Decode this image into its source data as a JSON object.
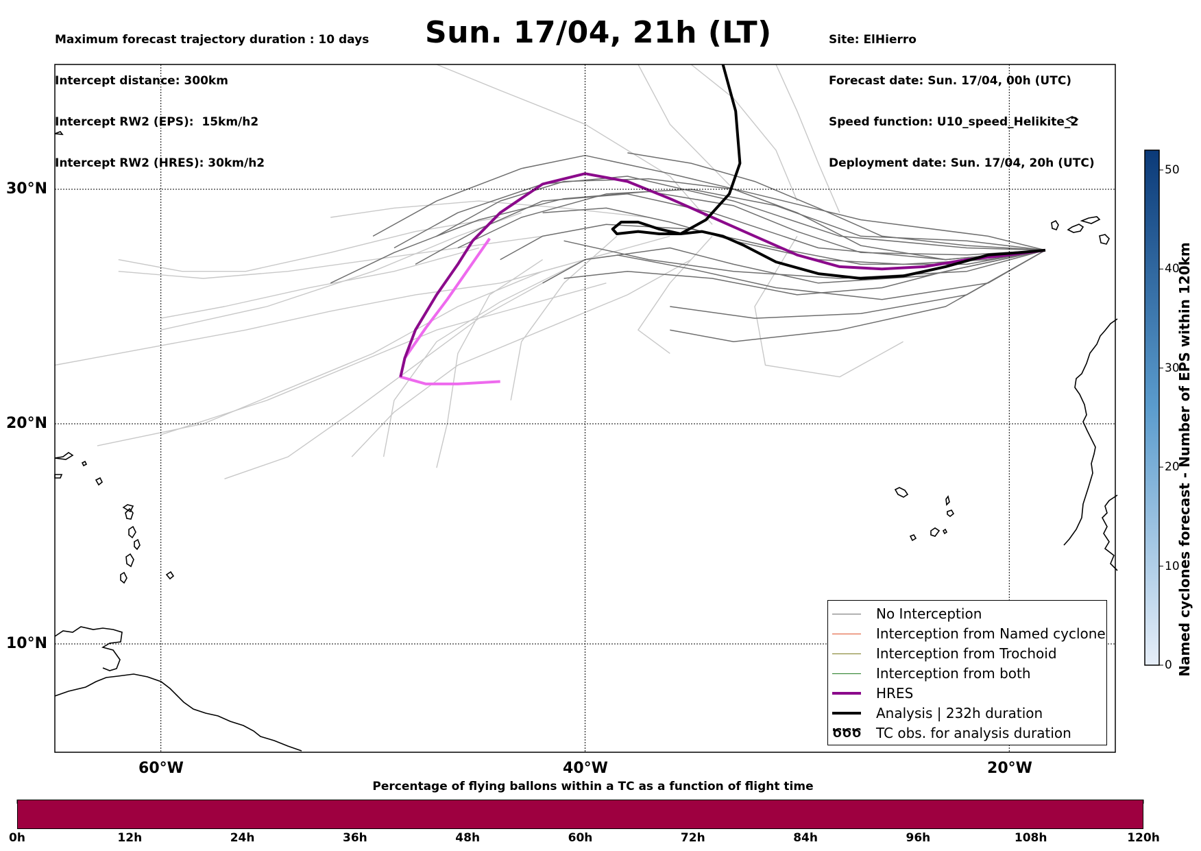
{
  "header": {
    "left_lines": [
      "Maximum forecast trajectory duration : 10 days",
      "Intercept distance: 300km",
      "Intercept RW2 (EPS):  15km/h2",
      "Intercept RW2 (HRES): 30km/h2"
    ],
    "title": "Sun. 17/04, 21h (LT)",
    "right_lines": [
      "Site: ElHierro",
      "Forecast date: Sun. 17/04, 00h (UTC)",
      "Speed function: U10_speed_Helikite_2",
      "Deployment date: Sun. 17/04, 20h (UTC)"
    ]
  },
  "map": {
    "lat_labels": [
      "30°N",
      "20°N",
      "10°N"
    ],
    "lon_labels": [
      "60°W",
      "40°W",
      "20°W"
    ],
    "gridlines_lat": [
      30,
      20,
      10
    ],
    "gridlines_lon": [
      -60,
      -40,
      -20
    ],
    "extent": {
      "lon_min": -65,
      "lon_max": -15,
      "lat_min": 5.4,
      "lat_max": 34.8
    },
    "colors": {
      "eps_near": "#6e6e6e",
      "eps_far": "#c8c8c8",
      "hres": "#8b0a8b",
      "hres_early": "#ee6aee",
      "analysis": "#000000"
    }
  },
  "trajectories": {
    "analysis": [
      [
        -18.3,
        27.4
      ],
      [
        -19.5,
        27.3
      ],
      [
        -21,
        27.2
      ],
      [
        -23,
        26.7
      ],
      [
        -25,
        26.3
      ],
      [
        -27,
        26.2
      ],
      [
        -29,
        26.4
      ],
      [
        -31,
        26.9
      ],
      [
        -32.5,
        27.6
      ],
      [
        -33.5,
        28.0
      ],
      [
        -34.5,
        28.2
      ],
      [
        -35.5,
        28.1
      ],
      [
        -36.5,
        28.1
      ],
      [
        -37.5,
        28.2
      ],
      [
        -38.5,
        28.1
      ],
      [
        -38.7,
        28.3
      ],
      [
        -38.3,
        28.6
      ],
      [
        -37.5,
        28.6
      ],
      [
        -36.5,
        28.3
      ],
      [
        -35.5,
        28.1
      ],
      [
        -34.3,
        28.7
      ],
      [
        -33.2,
        29.8
      ],
      [
        -32.7,
        31.0
      ],
      [
        -32.9,
        33.0
      ],
      [
        -33.5,
        34.8
      ]
    ],
    "hres": [
      [
        -18.3,
        27.4
      ],
      [
        -20,
        27.2
      ],
      [
        -22,
        27.0
      ],
      [
        -24,
        26.7
      ],
      [
        -26,
        26.6
      ],
      [
        -28,
        26.7
      ],
      [
        -30,
        27.2
      ],
      [
        -32,
        28.0
      ],
      [
        -34,
        28.8
      ],
      [
        -36,
        29.6
      ],
      [
        -38,
        30.3
      ],
      [
        -40,
        30.6
      ],
      [
        -42,
        30.2
      ],
      [
        -44,
        29.0
      ],
      [
        -45.3,
        27.8
      ],
      [
        -46,
        26.8
      ],
      [
        -47,
        25.5
      ],
      [
        -48,
        24.0
      ],
      [
        -48.5,
        22.8
      ],
      [
        -48.7,
        22.0
      ]
    ],
    "hres_early": [
      [
        -44.5,
        27.9
      ],
      [
        -45.5,
        26.6
      ],
      [
        -46.5,
        25.3
      ],
      [
        -47.5,
        24.1
      ],
      [
        -48.5,
        22.8
      ],
      [
        -48.7,
        22.0
      ],
      [
        -47.5,
        21.7
      ],
      [
        -46.0,
        21.7
      ],
      [
        -44.0,
        21.8
      ]
    ],
    "eps_near": [
      [
        [
          -18.3,
          27.4
        ],
        [
          -22,
          27.5
        ],
        [
          -28,
          28.0
        ],
        [
          -33,
          29.5
        ],
        [
          -38,
          30.5
        ],
        [
          -42,
          30.2
        ],
        [
          -46,
          29.0
        ],
        [
          -49,
          27.5
        ]
      ],
      [
        [
          -18.3,
          27.4
        ],
        [
          -23,
          27.0
        ],
        [
          -29,
          27.5
        ],
        [
          -34,
          29.0
        ],
        [
          -38,
          29.8
        ],
        [
          -42,
          29.5
        ],
        [
          -45,
          28.3
        ],
        [
          -48,
          26.8
        ]
      ],
      [
        [
          -18.3,
          27.4
        ],
        [
          -22,
          26.5
        ],
        [
          -28,
          26.2
        ],
        [
          -33,
          26.5
        ],
        [
          -37,
          27.0
        ],
        [
          -41,
          27.8
        ]
      ],
      [
        [
          -18.3,
          27.4
        ],
        [
          -21,
          26.0
        ],
        [
          -26,
          25.3
        ],
        [
          -31,
          25.8
        ],
        [
          -35,
          26.6
        ],
        [
          -38.5,
          27.2
        ]
      ],
      [
        [
          -18.3,
          27.4
        ],
        [
          -22,
          25.5
        ],
        [
          -27,
          24.7
        ],
        [
          -32,
          24.5
        ],
        [
          -36,
          25.0
        ]
      ],
      [
        [
          -18.3,
          27.4
        ],
        [
          -23,
          25.0
        ],
        [
          -28,
          24.0
        ],
        [
          -33,
          23.5
        ],
        [
          -36,
          24.0
        ]
      ],
      [
        [
          -18.3,
          27.4
        ],
        [
          -21,
          28.0
        ],
        [
          -27,
          28.7
        ],
        [
          -32,
          29.8
        ],
        [
          -36,
          30.6
        ],
        [
          -40,
          31.3
        ],
        [
          -43,
          30.8
        ],
        [
          -47,
          29.5
        ],
        [
          -50,
          28.0
        ]
      ],
      [
        [
          -18.3,
          27.4
        ],
        [
          -22,
          27.8
        ],
        [
          -27,
          28.0
        ],
        [
          -31,
          29.3
        ],
        [
          -35,
          30.0
        ],
        [
          -39,
          29.8
        ],
        [
          -43,
          28.8
        ],
        [
          -46,
          27.5
        ]
      ],
      [
        [
          -18.3,
          27.4
        ],
        [
          -22,
          26.8
        ],
        [
          -27,
          26.8
        ],
        [
          -31,
          27.5
        ],
        [
          -35,
          28.3
        ],
        [
          -39,
          28.5
        ],
        [
          -42,
          28.0
        ],
        [
          -44,
          27.0
        ]
      ],
      [
        [
          -18.3,
          27.4
        ],
        [
          -24,
          26.3
        ],
        [
          -29,
          26.0
        ],
        [
          -33,
          26.8
        ],
        [
          -36,
          27.5
        ],
        [
          -40,
          27.0
        ],
        [
          -42,
          26.0
        ]
      ],
      [
        [
          -18.3,
          27.4
        ],
        [
          -22,
          27.2
        ],
        [
          -27,
          27.3
        ],
        [
          -30,
          28.2
        ],
        [
          -33,
          29.3
        ],
        [
          -37,
          29.9
        ],
        [
          -41,
          29.6
        ],
        [
          -45,
          28.7
        ],
        [
          -49,
          27.3
        ],
        [
          -52,
          26.0
        ]
      ],
      [
        [
          -18.3,
          27.4
        ],
        [
          -23,
          27.0
        ],
        [
          -27,
          27.6
        ],
        [
          -30,
          29.0
        ],
        [
          -33,
          30.0
        ],
        [
          -37,
          30.4
        ],
        [
          -41,
          30.3
        ],
        [
          -44,
          29.5
        ],
        [
          -47,
          28.0
        ]
      ],
      [
        [
          -18.3,
          27.4
        ],
        [
          -22,
          27.6
        ],
        [
          -26,
          28.0
        ],
        [
          -29,
          29.2
        ],
        [
          -32,
          30.3
        ],
        [
          -35,
          31.0
        ],
        [
          -38,
          31.4
        ]
      ],
      [
        [
          -18.3,
          27.4
        ],
        [
          -21,
          27.0
        ],
        [
          -25,
          26.8
        ],
        [
          -29,
          27.0
        ],
        [
          -33,
          27.8
        ],
        [
          -36,
          28.6
        ],
        [
          -39,
          29.2
        ],
        [
          -42,
          29.0
        ]
      ],
      [
        [
          -18.3,
          27.4
        ],
        [
          -23,
          26.5
        ],
        [
          -26,
          25.8
        ],
        [
          -30,
          25.5
        ],
        [
          -34,
          26.2
        ],
        [
          -38,
          26.5
        ],
        [
          -41,
          26.2
        ]
      ]
    ],
    "eps_far": [
      [
        [
          -40,
          27
        ],
        [
          -44,
          26
        ],
        [
          -48,
          25.5
        ],
        [
          -52,
          24.8
        ],
        [
          -56,
          24.0
        ],
        [
          -62,
          23.0
        ],
        [
          -65,
          22.5
        ]
      ],
      [
        [
          -38,
          27.5
        ],
        [
          -42,
          26.5
        ],
        [
          -46,
          25.0
        ],
        [
          -50,
          23.0
        ],
        [
          -54,
          21.5
        ],
        [
          -58,
          20.0
        ],
        [
          -63,
          19.0
        ]
      ],
      [
        [
          -39,
          26
        ],
        [
          -43,
          25
        ],
        [
          -47,
          24.0
        ],
        [
          -51,
          22.5
        ],
        [
          -55,
          21.0
        ],
        [
          -60,
          19.5
        ]
      ],
      [
        [
          -41,
          26.5
        ],
        [
          -45,
          24.5
        ],
        [
          -48,
          22.5
        ],
        [
          -51,
          20.5
        ],
        [
          -54,
          18.5
        ],
        [
          -57,
          17.5
        ]
      ],
      [
        [
          -42,
          28
        ],
        [
          -46,
          27.5
        ],
        [
          -50,
          27.0
        ],
        [
          -54,
          26.5
        ],
        [
          -58,
          26.2
        ],
        [
          -62,
          26.5
        ]
      ],
      [
        [
          -37,
          28.8
        ],
        [
          -41,
          29.2
        ],
        [
          -45,
          29.5
        ],
        [
          -49,
          29.2
        ],
        [
          -52,
          28.8
        ]
      ],
      [
        [
          -35,
          27
        ],
        [
          -38,
          25.5
        ],
        [
          -42,
          24.0
        ],
        [
          -46,
          22.5
        ],
        [
          -49,
          20.5
        ],
        [
          -51,
          18.5
        ]
      ],
      [
        [
          -36,
          28
        ],
        [
          -40,
          27
        ],
        [
          -44,
          25.2
        ],
        [
          -47,
          23.5
        ],
        [
          -49,
          21.0
        ],
        [
          -49.5,
          18.5
        ]
      ],
      [
        [
          -34,
          28.5
        ],
        [
          -36,
          30.5
        ],
        [
          -40,
          32.5
        ],
        [
          -44,
          33.8
        ],
        [
          -47,
          34.8
        ]
      ],
      [
        [
          -30,
          29.5
        ],
        [
          -31,
          31.5
        ],
        [
          -33,
          33.5
        ],
        [
          -35,
          34.8
        ]
      ],
      [
        [
          -33,
          30
        ],
        [
          -36,
          32.5
        ],
        [
          -37.5,
          34.8
        ]
      ],
      [
        [
          -28,
          29
        ],
        [
          -29,
          31
        ],
        [
          -30,
          33.0
        ],
        [
          -31,
          34.8
        ]
      ],
      [
        [
          -30,
          28
        ],
        [
          -32,
          25.0
        ],
        [
          -31.5,
          22.5
        ],
        [
          -28,
          22.0
        ],
        [
          -25,
          23.5
        ]
      ],
      [
        [
          -34,
          28
        ],
        [
          -36,
          26
        ],
        [
          -37.5,
          24.0
        ],
        [
          -36,
          23.0
        ]
      ],
      [
        [
          -43,
          29
        ],
        [
          -46,
          28
        ],
        [
          -50,
          26.5
        ],
        [
          -55,
          25.0
        ],
        [
          -60,
          24.0
        ]
      ],
      [
        [
          -38.5,
          28
        ],
        [
          -41,
          26.0
        ],
        [
          -43,
          23.5
        ],
        [
          -43.5,
          21.0
        ]
      ],
      [
        [
          -42,
          27
        ],
        [
          -44.5,
          25.5
        ],
        [
          -46,
          23.0
        ],
        [
          -46.5,
          20.0
        ],
        [
          -47,
          18.0
        ]
      ],
      [
        [
          -45,
          27.5
        ],
        [
          -49,
          26.5
        ],
        [
          -53,
          25.8
        ],
        [
          -57,
          25.0
        ],
        [
          -60,
          24.5
        ]
      ],
      [
        [
          -44,
          28.8
        ],
        [
          -48,
          28.2
        ],
        [
          -52,
          27.3
        ],
        [
          -56,
          26.5
        ],
        [
          -59,
          26.5
        ],
        [
          -62,
          27.0
        ]
      ]
    ]
  },
  "legend": {
    "items": [
      {
        "label": "No Interception",
        "color": "#6e6e6e",
        "width": 1.5,
        "kind": "line"
      },
      {
        "label": "Interception from Named cyclone",
        "color": "#e0502a",
        "width": 1.5,
        "kind": "line"
      },
      {
        "label": "Interception from Trochoid",
        "color": "#7a7a1e",
        "width": 1.5,
        "kind": "line"
      },
      {
        "label": "Interception from both",
        "color": "#1e7a1e",
        "width": 1.5,
        "kind": "line"
      },
      {
        "label": "HRES",
        "color": "#8b0a8b",
        "width": 4,
        "kind": "line"
      },
      {
        "label": "Analysis | 232h duration",
        "color": "#000000",
        "width": 4,
        "kind": "line"
      },
      {
        "label": "TC obs. for analysis duration",
        "color": "#000000",
        "width": 0,
        "kind": "symbol",
        "symbol": "ԾԾԾ"
      }
    ]
  },
  "colorbar_vertical": {
    "label": "Named cyclones forecast - Number of EPS within 120km",
    "ticks": [
      "0",
      "10",
      "20",
      "30",
      "40",
      "50"
    ],
    "range": [
      0,
      52
    ],
    "color_low": "#e6eef8",
    "color_high": "#0b3a78"
  },
  "colorbar_horizontal": {
    "title": "Percentage of flying ballons within a TC as a function of flight time",
    "ticks": [
      "0h",
      "12h",
      "24h",
      "36h",
      "48h",
      "60h",
      "72h",
      "84h",
      "96h",
      "108h",
      "120h"
    ],
    "fill_color": "#9e0040"
  }
}
